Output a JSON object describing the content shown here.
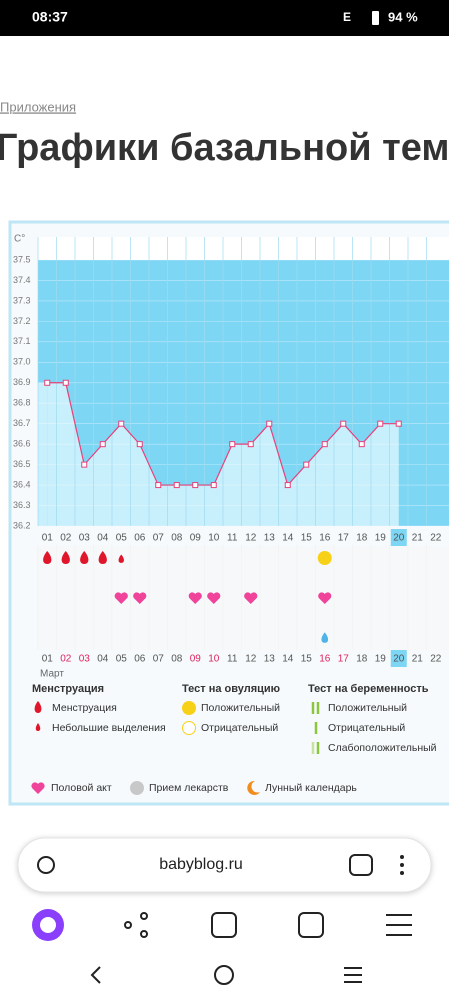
{
  "status_bar": {
    "time": "08:37",
    "network": "E",
    "battery": "94 %"
  },
  "breadcrumb": "Приложения",
  "title": "Графики базальной темпе",
  "chart_data": {
    "type": "line",
    "y_label": "C°",
    "categories": [
      "01",
      "02",
      "03",
      "04",
      "05",
      "06",
      "07",
      "08",
      "09",
      "10",
      "11",
      "12",
      "13",
      "14",
      "15",
      "16",
      "17",
      "18",
      "19",
      "20",
      "21",
      "22"
    ],
    "values": [
      36.9,
      36.9,
      36.5,
      36.6,
      36.7,
      36.6,
      36.4,
      36.4,
      36.4,
      36.4,
      36.6,
      36.6,
      36.7,
      36.4,
      36.5,
      36.6,
      36.7,
      36.6,
      36.7,
      36.7,
      null,
      null
    ],
    "ylim": [
      36.2,
      37.5
    ],
    "yticks": [
      36.2,
      36.3,
      36.4,
      36.5,
      36.6,
      36.7,
      36.8,
      36.9,
      {
        "value": 37,
        "label": "37.0"
      },
      37.1,
      37.2,
      37.3,
      37.4,
      37.5
    ],
    "color": "#e8407a",
    "today": 19,
    "month": "Март",
    "weekend_days": [
      1,
      2,
      8,
      9,
      15,
      16
    ],
    "events": {
      "menstruation": [
        0,
        1,
        2,
        3
      ],
      "light_discharge": [
        4
      ],
      "ovulation_positive": [
        15
      ],
      "intercourse": [
        4,
        5,
        8,
        9,
        11,
        15
      ],
      "water": [
        15
      ]
    }
  },
  "legend": {
    "menstruation": {
      "title": "Менструация",
      "items": [
        "Менструация",
        "Небольшие выделения"
      ]
    },
    "ovulation": {
      "title": "Тест на овуляцию",
      "items": [
        "Положительный",
        "Отрицательный"
      ]
    },
    "pregnancy": {
      "title": "Тест на беременность",
      "items": [
        "Положительный",
        "Отрицательный",
        "Слабоположительный"
      ]
    },
    "other": [
      "Половой акт",
      "Прием лекарств",
      "Лунный календарь"
    ]
  },
  "browser": {
    "url": "babyblog.ru"
  }
}
